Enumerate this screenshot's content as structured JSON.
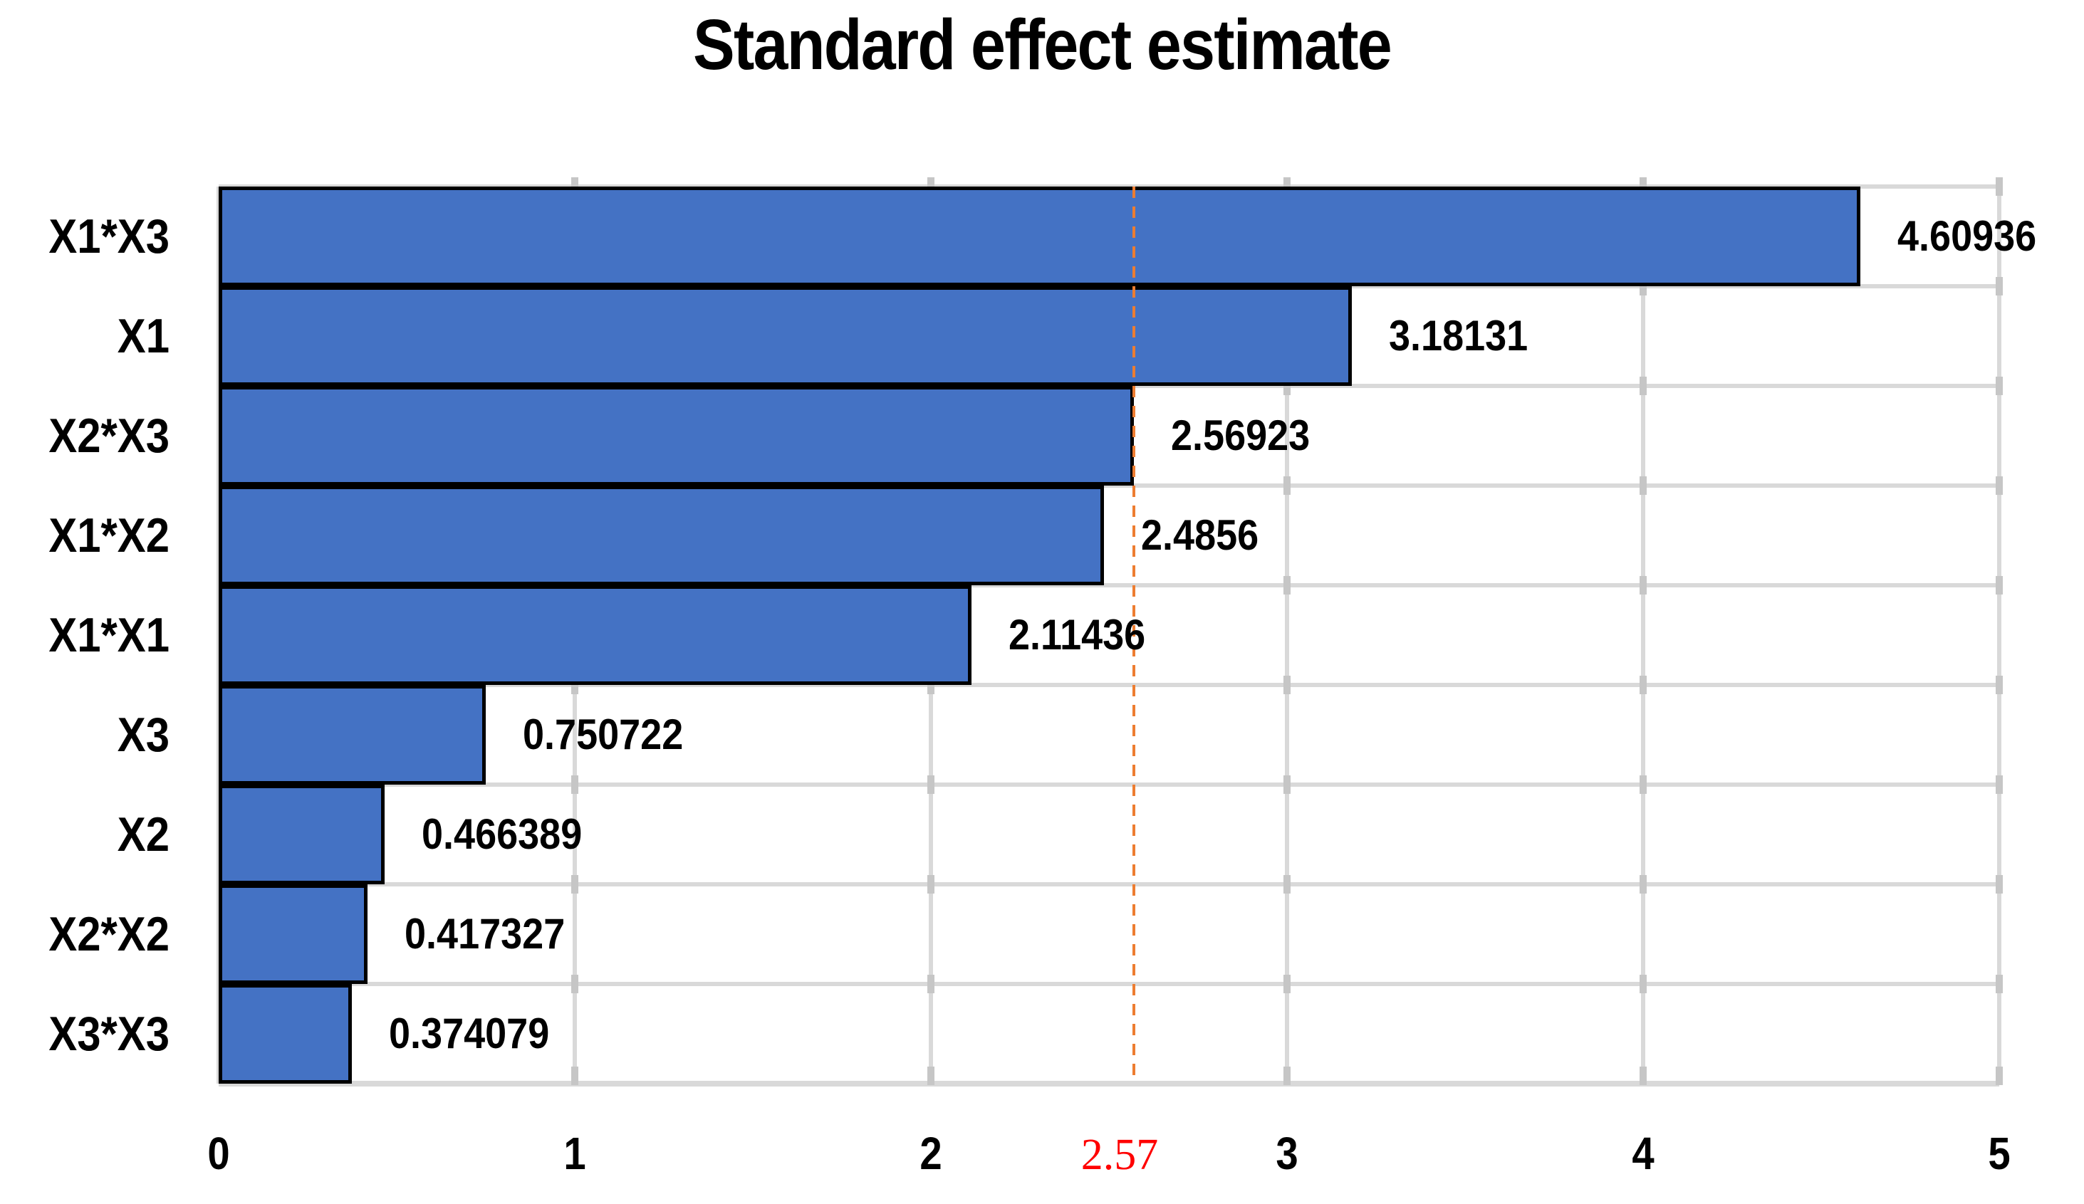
{
  "chart_data": {
    "type": "bar",
    "orientation": "horizontal",
    "title": "Standard effect estimate",
    "categories": [
      "X1*X3",
      "X1",
      "X2*X3",
      "X1*X2",
      "X1*X1",
      "X3",
      "X2",
      "X2*X2",
      "X3*X3"
    ],
    "values": [
      4.60936,
      3.18131,
      2.56923,
      2.4856,
      2.11436,
      0.750722,
      0.466389,
      0.417327,
      0.374079
    ],
    "value_labels": [
      "4.60936",
      "3.18131",
      "2.56923",
      "2.4856",
      "2.11436",
      "0.750722",
      "0.466389",
      "0.417327",
      "0.374079"
    ],
    "xlabel": "",
    "ylabel": "",
    "xlim": [
      0,
      5
    ],
    "x_ticks": [
      0,
      1,
      2,
      3,
      4,
      5
    ],
    "x_tick_labels": [
      "0",
      "1",
      "2",
      "3",
      "4",
      "5"
    ],
    "grid": true,
    "legend": false,
    "reference_line": {
      "value": 2.57,
      "label": "2.57",
      "style": "dashed"
    },
    "colors": {
      "bar_fill": "#4472C4",
      "bar_border": "#000000",
      "gridline": "#D9D9D9",
      "tick_stub": "#C6C6C6",
      "reference_line": "#ED7D31",
      "reference_label": "#FF0000",
      "text": "#000000",
      "background": "#FFFFFF"
    }
  }
}
